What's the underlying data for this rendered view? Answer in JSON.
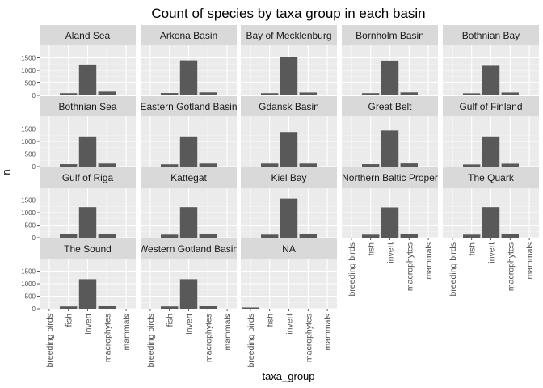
{
  "chart_data": {
    "type": "bar",
    "title": "Count of species by taxa group in each basin",
    "xlabel": "taxa_group",
    "ylabel": "n",
    "categories": [
      "breeding birds",
      "fish",
      "invert",
      "macrophytes",
      "mammals"
    ],
    "y_ticks": [
      0,
      500,
      1000,
      1500
    ],
    "y_tick_labels": [
      "0",
      "500",
      "1000",
      "1500"
    ],
    "ylim": [
      0,
      2000
    ],
    "grid": true,
    "colors": {
      "bar": "#595959",
      "panel": "#ebebeb",
      "grid_major": "#ffffff",
      "grid_minor": "#f5f5f5",
      "strip": "#d9d9d9"
    },
    "facets": [
      {
        "name": "Aland Sea",
        "values": [
          2,
          90,
          1230,
          150,
          0
        ]
      },
      {
        "name": "Arkona Basin",
        "values": [
          2,
          95,
          1400,
          120,
          0
        ]
      },
      {
        "name": "Bay of Mecklenburg",
        "values": [
          2,
          90,
          1540,
          115,
          0
        ]
      },
      {
        "name": "Bornholm Basin",
        "values": [
          2,
          90,
          1390,
          120,
          0
        ]
      },
      {
        "name": "Bothnian Bay",
        "values": [
          2,
          85,
          1180,
          115,
          0
        ]
      },
      {
        "name": "Bothnian Sea",
        "values": [
          2,
          95,
          1200,
          120,
          0
        ]
      },
      {
        "name": "Eastern Gotland Basin",
        "values": [
          2,
          90,
          1200,
          120,
          0
        ]
      },
      {
        "name": "Gdansk Basin",
        "values": [
          2,
          120,
          1380,
          120,
          0
        ]
      },
      {
        "name": "Great Belt",
        "values": [
          2,
          95,
          1440,
          125,
          0
        ]
      },
      {
        "name": "Gulf of Finland",
        "values": [
          2,
          85,
          1200,
          115,
          0
        ]
      },
      {
        "name": "Gulf of Riga",
        "values": [
          2,
          140,
          1220,
          160,
          0
        ]
      },
      {
        "name": "Kattegat",
        "values": [
          2,
          120,
          1220,
          150,
          0
        ]
      },
      {
        "name": "Kiel Bay",
        "values": [
          2,
          120,
          1560,
          150,
          0
        ]
      },
      {
        "name": "Northern Baltic Proper",
        "values": [
          2,
          120,
          1210,
          150,
          0
        ]
      },
      {
        "name": "The Quark",
        "values": [
          2,
          120,
          1220,
          150,
          0
        ]
      },
      {
        "name": "The Sound",
        "values": [
          2,
          90,
          1180,
          120,
          0
        ]
      },
      {
        "name": "Western Gotland Basin",
        "values": [
          2,
          90,
          1180,
          120,
          0
        ]
      },
      {
        "name": "NA",
        "values": [
          50,
          0,
          0,
          0,
          0
        ]
      }
    ]
  }
}
